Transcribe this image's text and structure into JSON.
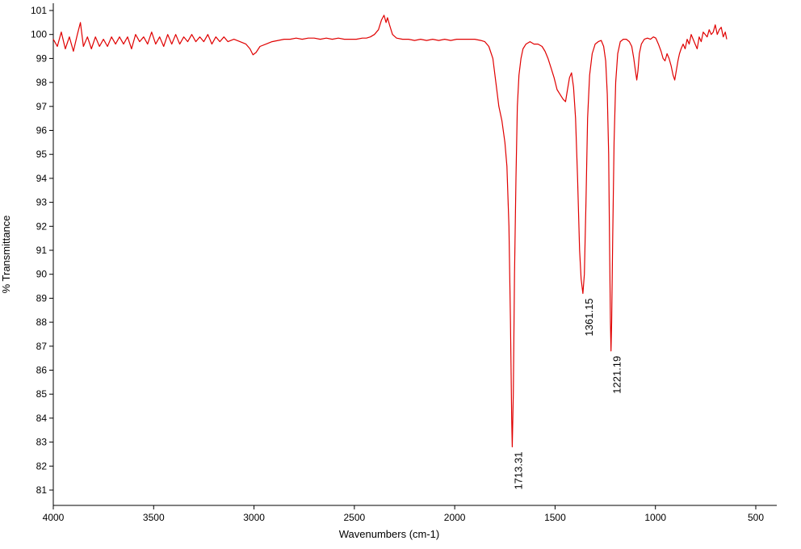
{
  "chart_data": {
    "type": "line",
    "title": "",
    "xlabel": "Wavenumbers (cm-1)",
    "ylabel": "% Transmittance",
    "xlim": [
      4000,
      400
    ],
    "ylim": [
      80.5,
      101.2
    ],
    "x_reversed": true,
    "x_ticks": [
      4000,
      3500,
      3000,
      2500,
      2000,
      1500,
      1000,
      500
    ],
    "y_ticks": [
      81,
      82,
      83,
      84,
      85,
      86,
      87,
      88,
      89,
      90,
      91,
      92,
      93,
      94,
      95,
      96,
      97,
      98,
      99,
      100,
      101
    ],
    "grid": false,
    "line_color": "#e00000",
    "series": [
      {
        "name": "",
        "points": [
          [
            4000,
            99.8
          ],
          [
            3980,
            99.5
          ],
          [
            3960,
            100.1
          ],
          [
            3940,
            99.4
          ],
          [
            3920,
            99.9
          ],
          [
            3900,
            99.3
          ],
          [
            3880,
            100.0
          ],
          [
            3865,
            100.5
          ],
          [
            3850,
            99.5
          ],
          [
            3830,
            99.9
          ],
          [
            3810,
            99.4
          ],
          [
            3790,
            99.9
          ],
          [
            3770,
            99.5
          ],
          [
            3750,
            99.8
          ],
          [
            3730,
            99.5
          ],
          [
            3710,
            99.9
          ],
          [
            3690,
            99.6
          ],
          [
            3670,
            99.9
          ],
          [
            3650,
            99.6
          ],
          [
            3630,
            99.9
          ],
          [
            3610,
            99.4
          ],
          [
            3590,
            100.0
          ],
          [
            3570,
            99.7
          ],
          [
            3550,
            99.9
          ],
          [
            3530,
            99.6
          ],
          [
            3510,
            100.1
          ],
          [
            3490,
            99.6
          ],
          [
            3470,
            99.9
          ],
          [
            3450,
            99.5
          ],
          [
            3430,
            100.0
          ],
          [
            3410,
            99.6
          ],
          [
            3390,
            100.0
          ],
          [
            3370,
            99.6
          ],
          [
            3350,
            99.9
          ],
          [
            3330,
            99.7
          ],
          [
            3310,
            100.0
          ],
          [
            3290,
            99.7
          ],
          [
            3270,
            99.9
          ],
          [
            3250,
            99.7
          ],
          [
            3230,
            100.0
          ],
          [
            3210,
            99.6
          ],
          [
            3190,
            99.9
          ],
          [
            3170,
            99.7
          ],
          [
            3150,
            99.9
          ],
          [
            3130,
            99.7
          ],
          [
            3100,
            99.8
          ],
          [
            3070,
            99.7
          ],
          [
            3040,
            99.6
          ],
          [
            3020,
            99.4
          ],
          [
            3005,
            99.15
          ],
          [
            2990,
            99.25
          ],
          [
            2970,
            99.5
          ],
          [
            2940,
            99.6
          ],
          [
            2910,
            99.7
          ],
          [
            2880,
            99.75
          ],
          [
            2850,
            99.8
          ],
          [
            2820,
            99.8
          ],
          [
            2790,
            99.85
          ],
          [
            2760,
            99.8
          ],
          [
            2730,
            99.85
          ],
          [
            2700,
            99.85
          ],
          [
            2670,
            99.8
          ],
          [
            2640,
            99.85
          ],
          [
            2610,
            99.8
          ],
          [
            2580,
            99.85
          ],
          [
            2550,
            99.8
          ],
          [
            2520,
            99.8
          ],
          [
            2490,
            99.8
          ],
          [
            2460,
            99.85
          ],
          [
            2440,
            99.85
          ],
          [
            2420,
            99.9
          ],
          [
            2400,
            100.0
          ],
          [
            2380,
            100.2
          ],
          [
            2365,
            100.6
          ],
          [
            2352,
            100.8
          ],
          [
            2342,
            100.5
          ],
          [
            2335,
            100.7
          ],
          [
            2325,
            100.4
          ],
          [
            2310,
            100.0
          ],
          [
            2290,
            99.85
          ],
          [
            2260,
            99.8
          ],
          [
            2230,
            99.8
          ],
          [
            2200,
            99.75
          ],
          [
            2170,
            99.8
          ],
          [
            2140,
            99.75
          ],
          [
            2110,
            99.8
          ],
          [
            2080,
            99.75
          ],
          [
            2050,
            99.8
          ],
          [
            2020,
            99.75
          ],
          [
            1990,
            99.8
          ],
          [
            1960,
            99.8
          ],
          [
            1930,
            99.8
          ],
          [
            1900,
            99.8
          ],
          [
            1870,
            99.75
          ],
          [
            1850,
            99.7
          ],
          [
            1830,
            99.5
          ],
          [
            1810,
            99.0
          ],
          [
            1795,
            98.0
          ],
          [
            1780,
            97.0
          ],
          [
            1765,
            96.4
          ],
          [
            1750,
            95.5
          ],
          [
            1740,
            94.5
          ],
          [
            1730,
            92.0
          ],
          [
            1722,
            88.0
          ],
          [
            1716,
            84.0
          ],
          [
            1713.31,
            82.8
          ],
          [
            1708,
            85.0
          ],
          [
            1702,
            90.0
          ],
          [
            1695,
            94.0
          ],
          [
            1688,
            97.0
          ],
          [
            1680,
            98.3
          ],
          [
            1670,
            99.0
          ],
          [
            1660,
            99.4
          ],
          [
            1645,
            99.6
          ],
          [
            1625,
            99.7
          ],
          [
            1605,
            99.6
          ],
          [
            1585,
            99.6
          ],
          [
            1565,
            99.5
          ],
          [
            1550,
            99.3
          ],
          [
            1535,
            99.0
          ],
          [
            1520,
            98.6
          ],
          [
            1505,
            98.2
          ],
          [
            1490,
            97.7
          ],
          [
            1475,
            97.5
          ],
          [
            1460,
            97.3
          ],
          [
            1448,
            97.2
          ],
          [
            1438,
            97.7
          ],
          [
            1428,
            98.2
          ],
          [
            1418,
            98.4
          ],
          [
            1408,
            97.8
          ],
          [
            1398,
            96.5
          ],
          [
            1388,
            94.0
          ],
          [
            1378,
            91.0
          ],
          [
            1370,
            89.8
          ],
          [
            1361.15,
            89.2
          ],
          [
            1354,
            90.0
          ],
          [
            1346,
            93.0
          ],
          [
            1338,
            96.5
          ],
          [
            1328,
            98.3
          ],
          [
            1315,
            99.2
          ],
          [
            1300,
            99.6
          ],
          [
            1285,
            99.7
          ],
          [
            1270,
            99.75
          ],
          [
            1258,
            99.5
          ],
          [
            1248,
            98.9
          ],
          [
            1240,
            97.5
          ],
          [
            1233,
            95.0
          ],
          [
            1228,
            91.0
          ],
          [
            1224,
            88.0
          ],
          [
            1221.19,
            86.8
          ],
          [
            1218,
            88.0
          ],
          [
            1213,
            91.5
          ],
          [
            1206,
            95.5
          ],
          [
            1198,
            98.0
          ],
          [
            1188,
            99.2
          ],
          [
            1175,
            99.7
          ],
          [
            1160,
            99.8
          ],
          [
            1145,
            99.8
          ],
          [
            1130,
            99.7
          ],
          [
            1118,
            99.5
          ],
          [
            1108,
            99.0
          ],
          [
            1100,
            98.5
          ],
          [
            1093,
            98.1
          ],
          [
            1087,
            98.5
          ],
          [
            1080,
            99.2
          ],
          [
            1070,
            99.6
          ],
          [
            1055,
            99.8
          ],
          [
            1040,
            99.85
          ],
          [
            1025,
            99.8
          ],
          [
            1010,
            99.9
          ],
          [
            998,
            99.85
          ],
          [
            985,
            99.6
          ],
          [
            972,
            99.3
          ],
          [
            962,
            99.0
          ],
          [
            952,
            98.9
          ],
          [
            942,
            99.2
          ],
          [
            932,
            99.0
          ],
          [
            922,
            98.7
          ],
          [
            912,
            98.3
          ],
          [
            904,
            98.1
          ],
          [
            896,
            98.5
          ],
          [
            888,
            98.9
          ],
          [
            880,
            99.2
          ],
          [
            872,
            99.4
          ],
          [
            862,
            99.6
          ],
          [
            852,
            99.4
          ],
          [
            842,
            99.8
          ],
          [
            832,
            99.6
          ],
          [
            822,
            100.0
          ],
          [
            812,
            99.8
          ],
          [
            802,
            99.6
          ],
          [
            792,
            99.4
          ],
          [
            782,
            99.9
          ],
          [
            772,
            99.7
          ],
          [
            762,
            100.1
          ],
          [
            752,
            100.0
          ],
          [
            742,
            99.9
          ],
          [
            732,
            100.2
          ],
          [
            722,
            100.0
          ],
          [
            712,
            100.1
          ],
          [
            702,
            100.4
          ],
          [
            692,
            100.0
          ],
          [
            682,
            100.2
          ],
          [
            672,
            100.3
          ],
          [
            662,
            99.9
          ],
          [
            652,
            100.1
          ],
          [
            645,
            99.8
          ]
        ]
      }
    ],
    "annotations": [
      {
        "text": "1713.31",
        "x": 1713.31,
        "y": 82.8
      },
      {
        "text": "1361.15",
        "x": 1361.15,
        "y": 89.2
      },
      {
        "text": "1221.19",
        "x": 1221.19,
        "y": 86.8
      }
    ]
  }
}
